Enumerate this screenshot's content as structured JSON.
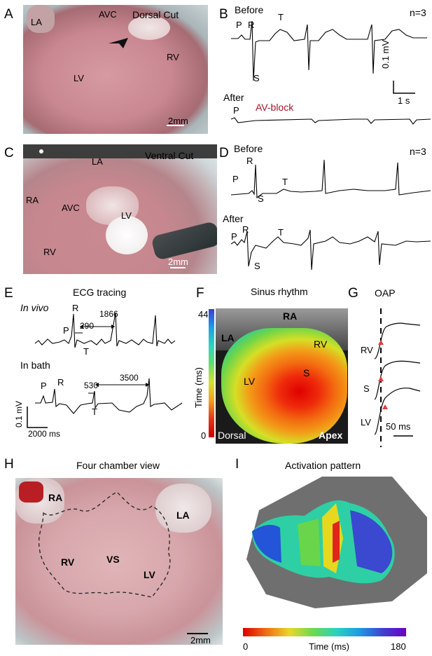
{
  "panels": {
    "A": {
      "letter": "A",
      "title": "Dorsal Cut",
      "labels": {
        "la": "LA",
        "avc": "AVC",
        "lv": "LV",
        "rv": "RV"
      },
      "scale": "2mm"
    },
    "B": {
      "letter": "B",
      "before": "Before",
      "after": "After",
      "n": "n=3",
      "av_block": "AV-block",
      "waves": {
        "p": "P",
        "r": "R",
        "t": "T",
        "s": "S"
      },
      "scale_v": "0.1 mV",
      "scale_t": "1 s",
      "p_after": "P"
    },
    "C": {
      "letter": "C",
      "title": "Ventral Cut",
      "labels": {
        "la": "LA",
        "ra": "RA",
        "avc": "AVC",
        "lv": "LV",
        "rv": "RV"
      },
      "scale": "2mm"
    },
    "D": {
      "letter": "D",
      "before": "Before",
      "after": "After",
      "n": "n=3",
      "waves": {
        "p": "P",
        "r": "R",
        "s": "S",
        "t": "T"
      },
      "waves_after": {
        "p": "P",
        "r": "R",
        "s": "S",
        "t": "T"
      }
    },
    "E": {
      "letter": "E",
      "title": "ECG tracing",
      "in_vivo": "In vivo",
      "in_bath": "In bath",
      "waves": {
        "p": "P",
        "r": "R",
        "t": "T"
      },
      "waves_bath": {
        "p": "P",
        "r": "R",
        "t": "T"
      },
      "int1": "290",
      "int2": "1866",
      "int3": "530",
      "int4": "3500",
      "scale_v": "0.1 mV",
      "scale_t": "2000 ms"
    },
    "F": {
      "letter": "F",
      "title": "Sinus rhythm",
      "cbar_max": "44",
      "cbar_min": "0",
      "cbar_label": "Time (ms)",
      "labels": {
        "ra": "RA",
        "la": "LA",
        "rv": "RV",
        "lv": "LV",
        "s": "S",
        "dorsal": "Dorsal",
        "apex": "Apex"
      }
    },
    "G": {
      "letter": "G",
      "title": "OAP",
      "labels": {
        "rv": "RV",
        "s": "S",
        "lv": "LV"
      },
      "scale": "50 ms"
    },
    "H": {
      "letter": "H",
      "title": "Four chamber view",
      "labels": {
        "ra": "RA",
        "la": "LA",
        "rv": "RV",
        "vs": "VS",
        "lv": "LV"
      },
      "scale": "2mm"
    },
    "I": {
      "letter": "I",
      "title": "Activation pattern",
      "cbar_min": "0",
      "cbar_max": "180",
      "cbar_label": "Time (ms)"
    }
  }
}
